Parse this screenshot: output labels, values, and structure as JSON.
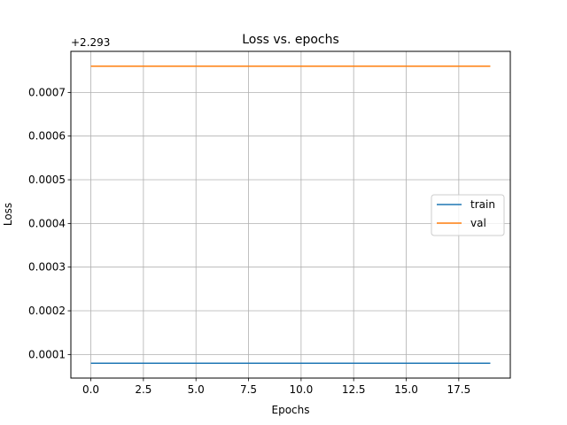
{
  "chart_data": {
    "type": "line",
    "title": "Loss vs. epochs",
    "xlabel": "Epochs",
    "ylabel": "Loss",
    "y_offset_label": "+2.293",
    "x": [
      0,
      1,
      2,
      3,
      4,
      5,
      6,
      7,
      8,
      9,
      10,
      11,
      12,
      13,
      14,
      15,
      16,
      17,
      18,
      19
    ],
    "series": [
      {
        "name": "train",
        "color": "#1f77b4",
        "values": [
          8e-05,
          8e-05,
          8e-05,
          8e-05,
          8e-05,
          8e-05,
          8e-05,
          8e-05,
          8e-05,
          8e-05,
          8e-05,
          8e-05,
          8e-05,
          8e-05,
          8e-05,
          8e-05,
          8e-05,
          8e-05,
          8e-05,
          8e-05
        ]
      },
      {
        "name": "val",
        "color": "#ff7f0e",
        "values": [
          0.00076,
          0.00076,
          0.00076,
          0.00076,
          0.00076,
          0.00076,
          0.00076,
          0.00076,
          0.00076,
          0.00076,
          0.00076,
          0.00076,
          0.00076,
          0.00076,
          0.00076,
          0.00076,
          0.00076,
          0.00076,
          0.00076,
          0.00076
        ]
      }
    ],
    "xlim": [
      -0.95,
      19.95
    ],
    "ylim": [
      4.6e-05,
      0.000794
    ],
    "x_ticks": [
      0,
      2.5,
      5,
      7.5,
      10,
      12.5,
      15,
      17.5
    ],
    "x_tick_labels": [
      "0.0",
      "2.5",
      "5.0",
      "7.5",
      "10.0",
      "12.5",
      "15.0",
      "17.5"
    ],
    "y_ticks": [
      0.0001,
      0.0002,
      0.0003,
      0.0004,
      0.0005,
      0.0006,
      0.0007
    ],
    "y_tick_labels": [
      "0.0001",
      "0.0002",
      "0.0003",
      "0.0004",
      "0.0005",
      "0.0006",
      "0.0007"
    ],
    "grid": true,
    "legend_position": "center-right"
  }
}
